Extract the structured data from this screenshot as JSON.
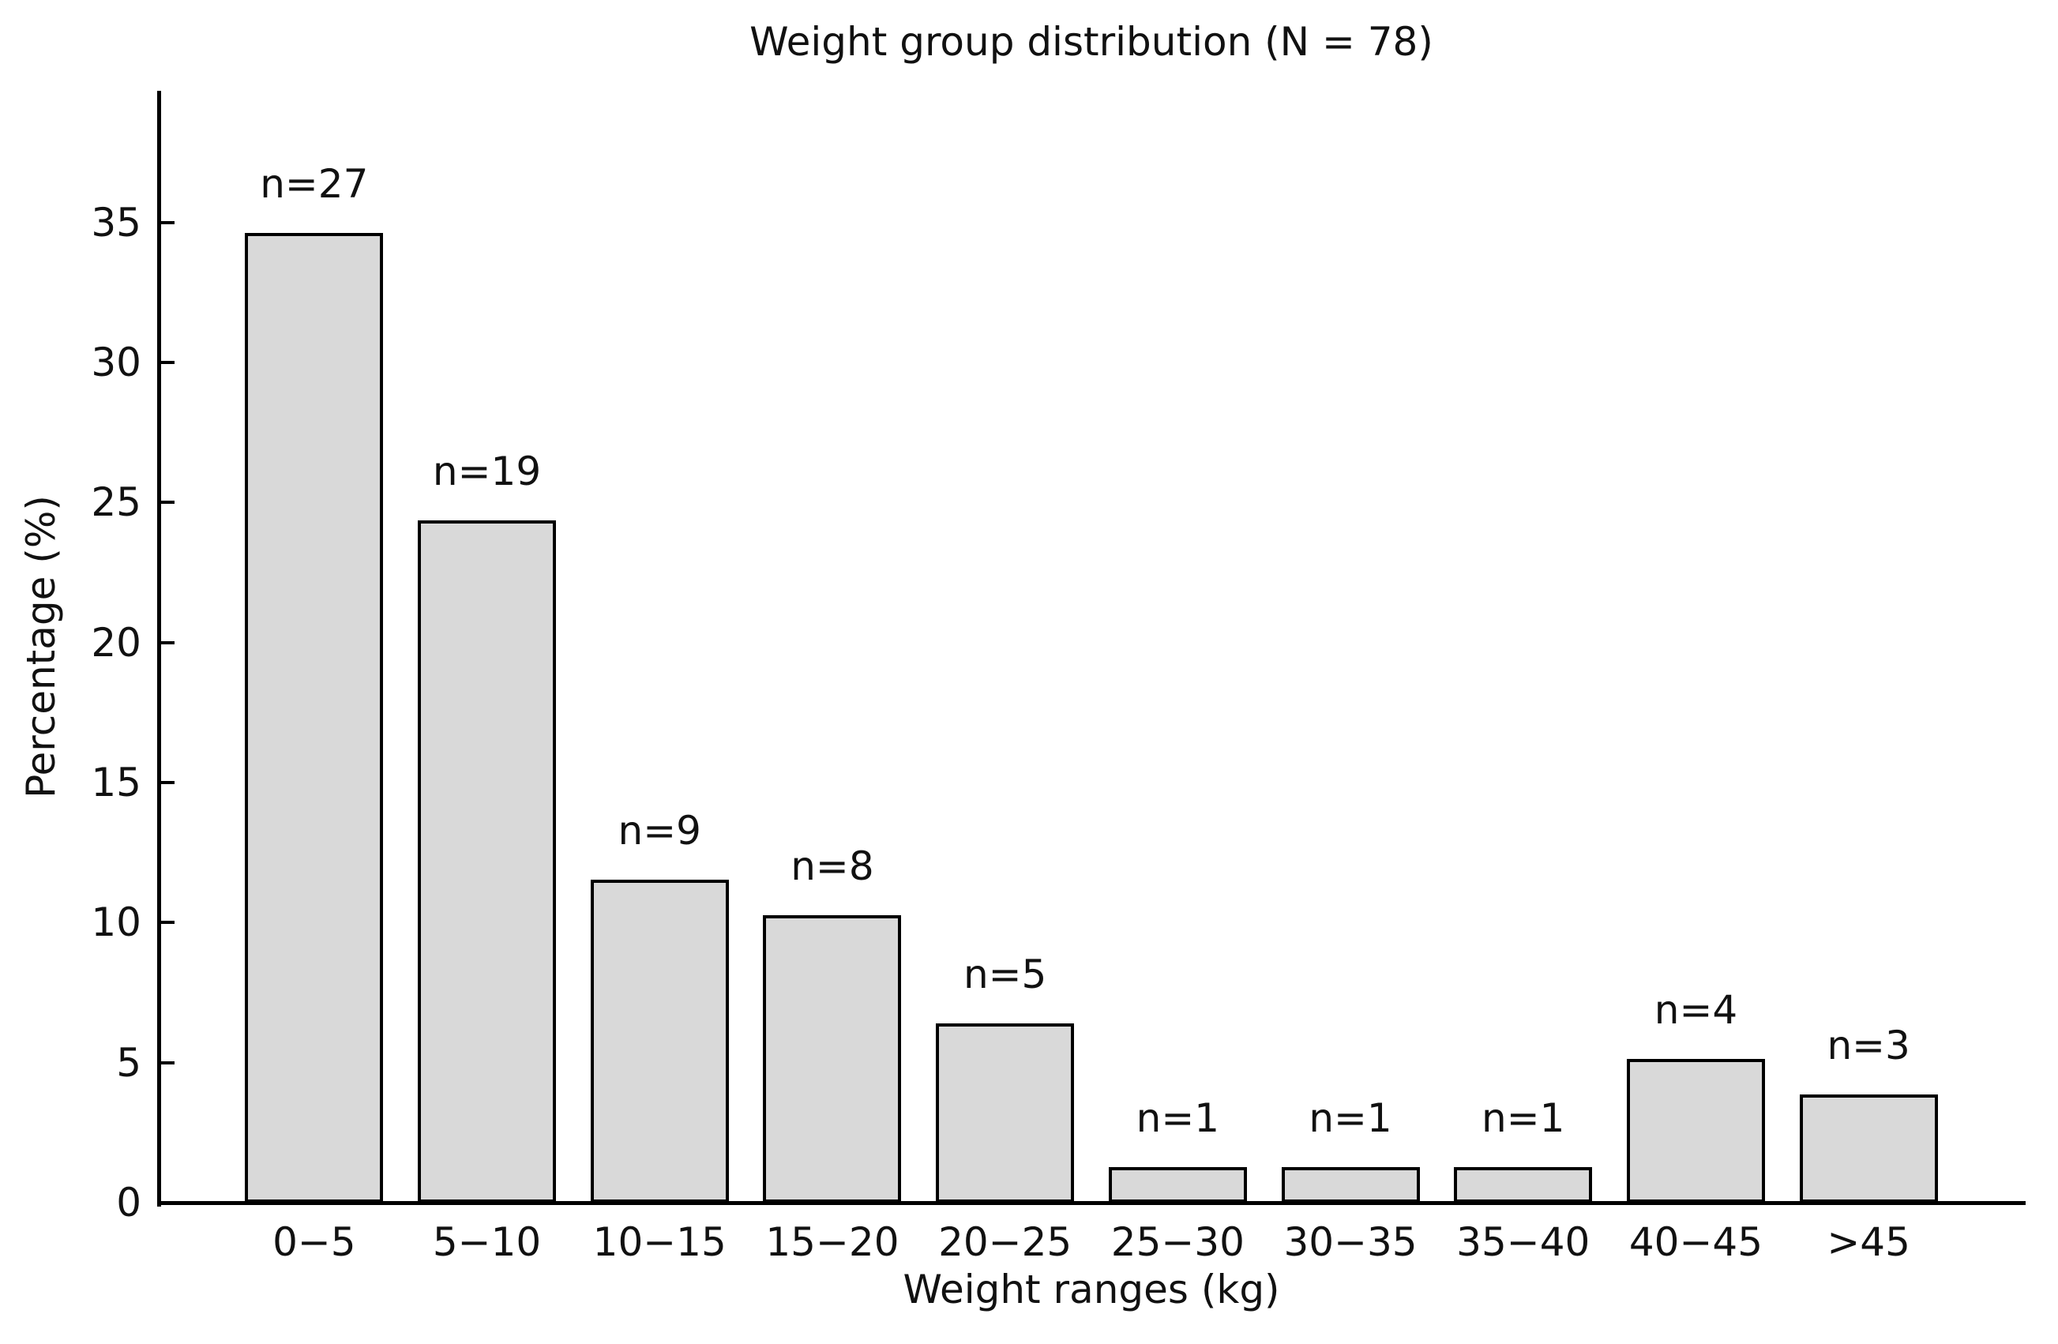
{
  "chart_data": {
    "type": "bar",
    "title": "Weight group distribution (N = 78)",
    "xlabel": "Weight ranges (kg)",
    "ylabel": "Percentage (%)",
    "total_n": 78,
    "categories": [
      "0−5",
      "5−10",
      "10−15",
      "15−20",
      "20−25",
      "25−30",
      "30−35",
      "35−40",
      "40−45",
      ">45"
    ],
    "counts": [
      27,
      19,
      9,
      8,
      5,
      1,
      1,
      1,
      4,
      3
    ],
    "values": [
      34.62,
      24.36,
      11.54,
      10.26,
      6.41,
      1.28,
      1.28,
      1.28,
      5.13,
      3.85
    ],
    "bar_labels": [
      "n=27",
      "n=19",
      "n=9",
      "n=8",
      "n=5",
      "n=1",
      "n=1",
      "n=1",
      "n=4",
      "n=3"
    ],
    "yticks": [
      0,
      5,
      10,
      15,
      20,
      25,
      30,
      35
    ],
    "ylim": [
      0,
      39.7
    ],
    "grid": false,
    "legend": null,
    "bar_fill": "#d9d9d9",
    "bar_edge": "#000000",
    "axis_color": "#000000",
    "background": "#ffffff"
  }
}
